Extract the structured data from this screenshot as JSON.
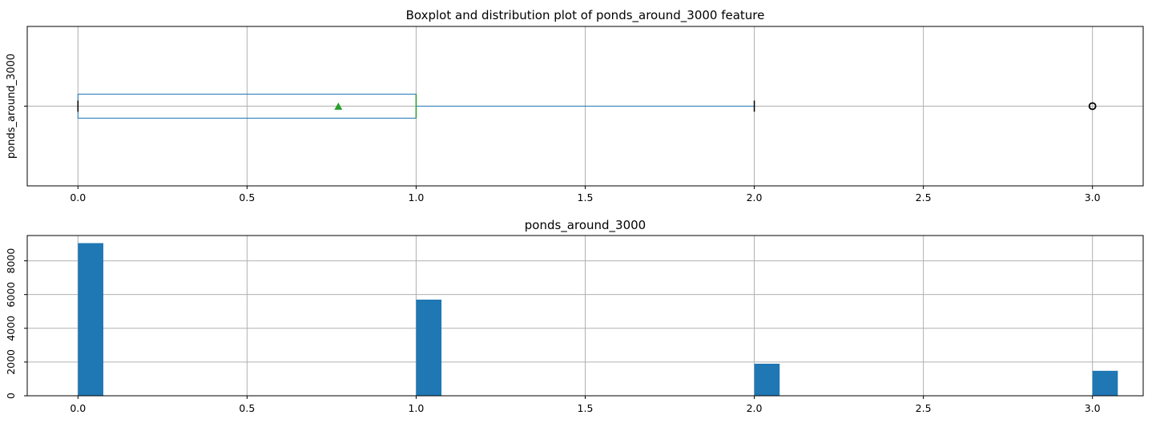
{
  "chart_data": [
    {
      "type": "box",
      "title": "Boxplot and distribution plot of ponds_around_3000 feature",
      "xlabel": "",
      "ylabel": "ponds_around_3000",
      "category_label": "ponds_around_3000",
      "orientation": "horizontal",
      "xlim": [
        -0.15,
        3.15
      ],
      "x_ticks": [
        0.0,
        0.5,
        1.0,
        1.5,
        2.0,
        2.5,
        3.0
      ],
      "x_tick_labels": [
        "0.0",
        "0.5",
        "1.0",
        "1.5",
        "2.0",
        "2.5",
        "3.0"
      ],
      "grid": true,
      "stats": {
        "whisker_low": 0.0,
        "q1": 0.0,
        "median": 1.0,
        "q3": 1.0,
        "whisker_high": 2.0,
        "mean": 0.77,
        "outliers": [
          3.0
        ]
      },
      "colors": {
        "box": "#1f77b4",
        "median": "#2ca02c",
        "mean": "#2ca02c",
        "caps": "#000000"
      }
    },
    {
      "type": "bar",
      "title": "ponds_around_3000",
      "xlim": [
        -0.15,
        3.15
      ],
      "ylim": [
        0,
        9500
      ],
      "x_ticks": [
        0.0,
        0.5,
        1.0,
        1.5,
        2.0,
        2.5,
        3.0
      ],
      "x_tick_labels": [
        "0.0",
        "0.5",
        "1.0",
        "1.5",
        "2.0",
        "2.5",
        "3.0"
      ],
      "y_ticks": [
        0,
        2000,
        4000,
        6000,
        8000
      ],
      "y_tick_labels": [
        "0",
        "2000",
        "4000",
        "6000",
        "8000"
      ],
      "grid": true,
      "bin_width": 0.075,
      "bins": [
        {
          "x": 0.0,
          "count": 9050
        },
        {
          "x": 1.0,
          "count": 5700
        },
        {
          "x": 2.0,
          "count": 1900
        },
        {
          "x": 3.0,
          "count": 1480
        }
      ],
      "colors": {
        "bar": "#1f77b4"
      }
    }
  ]
}
